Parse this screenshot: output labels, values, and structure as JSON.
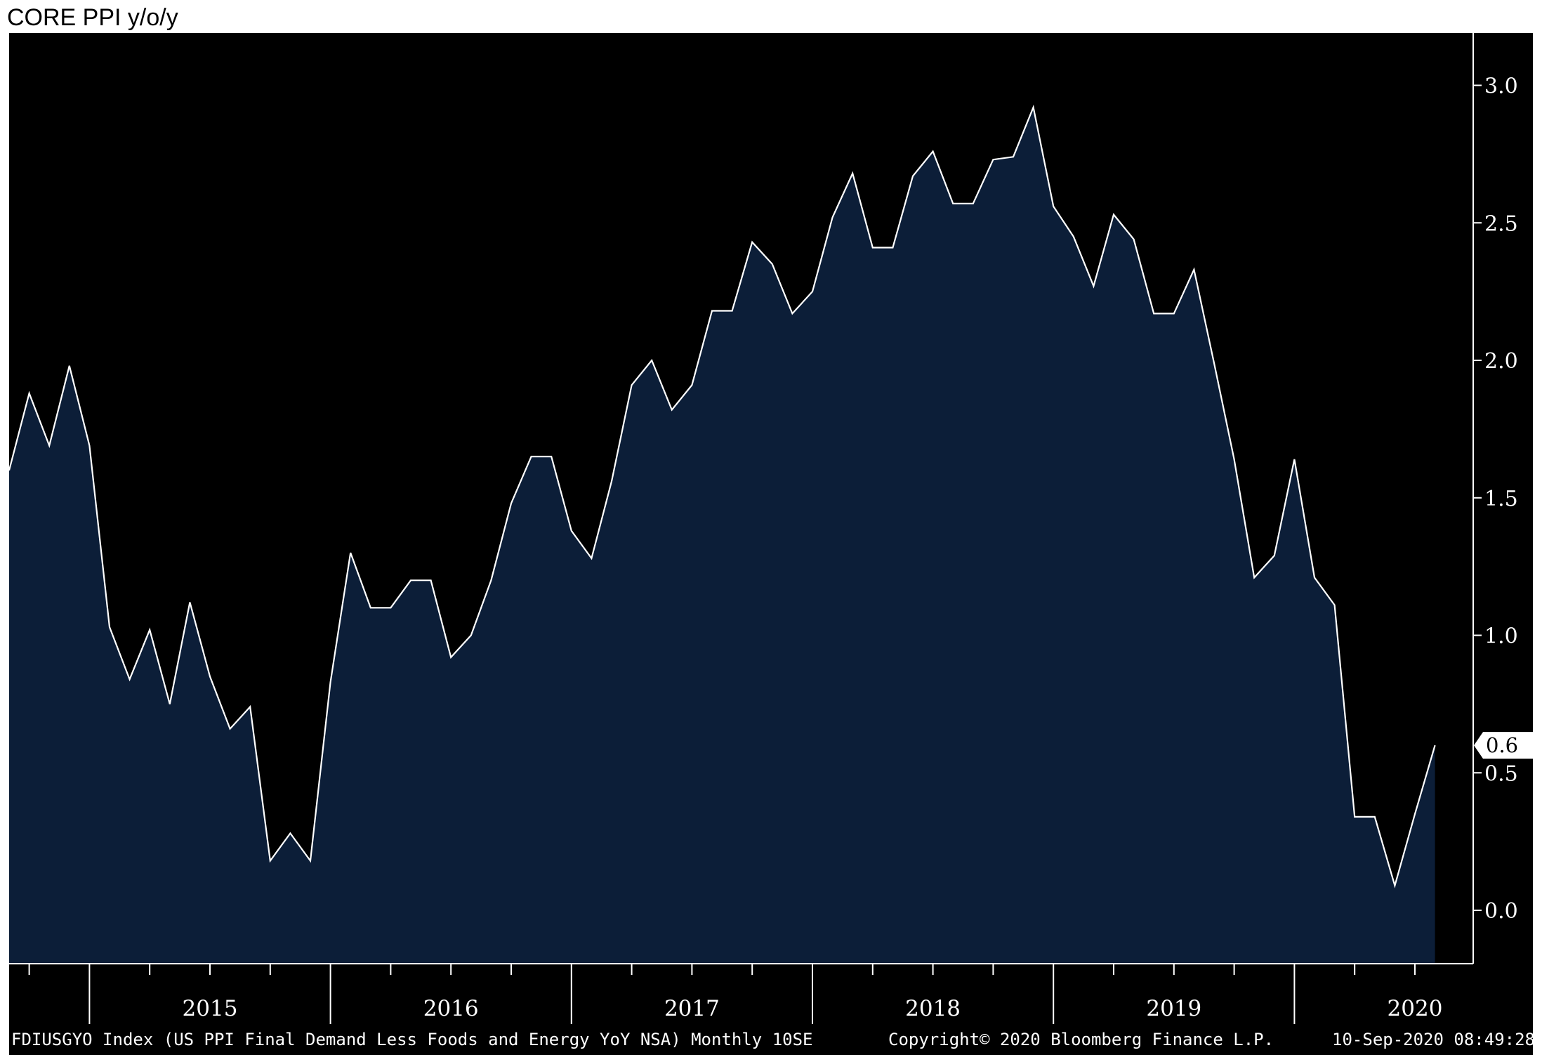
{
  "chart_data": {
    "type": "area",
    "title": "CORE PPI y/o/y",
    "x_start": "2014-09",
    "frequency": "monthly",
    "values": [
      1.6,
      1.88,
      1.69,
      1.98,
      1.69,
      1.03,
      0.84,
      1.02,
      0.75,
      1.12,
      0.85,
      0.66,
      0.74,
      0.18,
      0.28,
      0.18,
      0.83,
      1.3,
      1.1,
      1.1,
      1.2,
      1.2,
      0.92,
      1.0,
      1.2,
      1.48,
      1.65,
      1.65,
      1.38,
      1.28,
      1.56,
      1.91,
      2.0,
      1.82,
      1.91,
      2.18,
      2.18,
      2.43,
      2.35,
      2.17,
      2.25,
      2.52,
      2.68,
      2.41,
      2.41,
      2.67,
      2.76,
      2.57,
      2.57,
      2.73,
      2.74,
      2.92,
      2.56,
      2.45,
      2.27,
      2.53,
      2.44,
      2.17,
      2.17,
      2.33,
      1.99,
      1.64,
      1.21,
      1.29,
      1.64,
      1.21,
      1.11,
      0.34,
      0.34,
      0.09,
      0.35,
      0.6
    ],
    "last_value_label": "0.6",
    "y_ticks": [
      "0.0",
      "0.5",
      "1.0",
      "1.5",
      "2.0",
      "2.5",
      "3.0"
    ],
    "y_range": [
      -0.2,
      3.2
    ],
    "x_year_labels": [
      "2015",
      "2016",
      "2017",
      "2018",
      "2019",
      "2020"
    ],
    "y_axis_side": "right",
    "grid": false,
    "colors": {
      "background": "#000000",
      "fill": "#0c1e38",
      "line": "#ffffff"
    }
  },
  "footer": {
    "series_description": "FDIUSGYO Index (US PPI Final Demand Less Foods and Energy YoY NSA)  Monthly 10SE",
    "copyright": "Copyright© 2020 Bloomberg Finance L.P.",
    "timestamp": "10-Sep-2020 08:49:28"
  }
}
